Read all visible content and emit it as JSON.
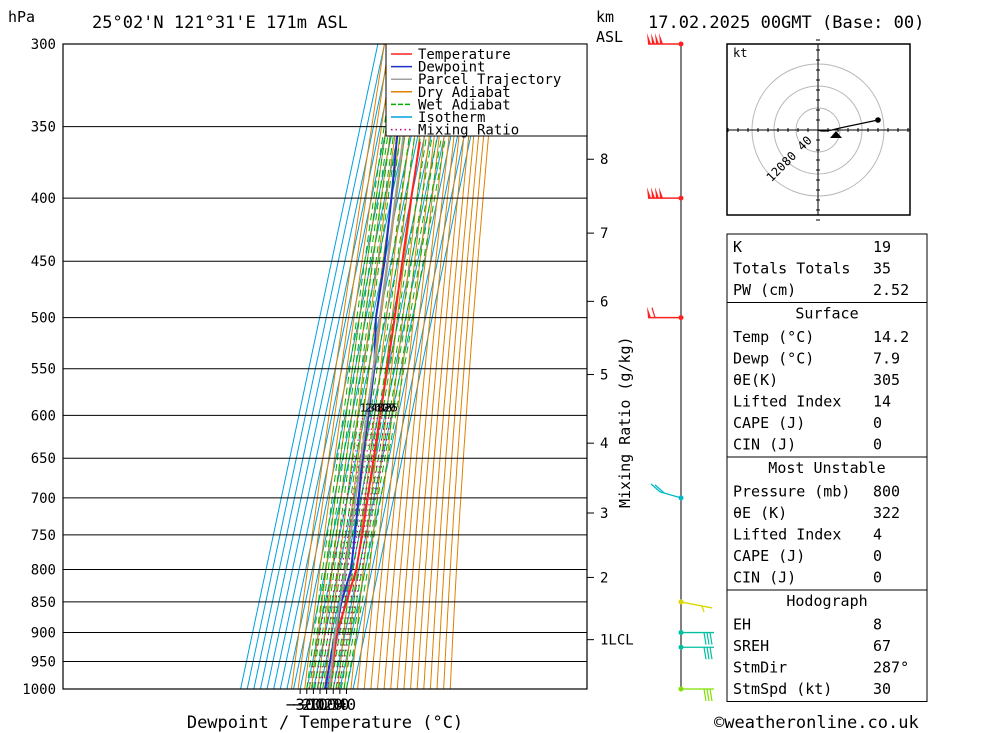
{
  "header": {
    "pressure_unit": "hPa",
    "location": "25°02'N 121°31'E 171m ASL",
    "height_unit_1": "km",
    "height_unit_2": "ASL",
    "date": "17.02.2025 00GMT (Base: 00)"
  },
  "legend": [
    {
      "label": "Temperature",
      "color": "#ff2020"
    },
    {
      "label": "Dewpoint",
      "color": "#1e32c8"
    },
    {
      "label": "Parcel Trajectory",
      "color": "#a0a0a0"
    },
    {
      "label": "Dry Adiabat",
      "color": "#e08000"
    },
    {
      "label": "Wet Adiabat",
      "color": "#00b000"
    },
    {
      "label": "Isotherm",
      "color": "#00a0e0"
    },
    {
      "label": "Mixing Ratio",
      "color": "#c00080"
    }
  ],
  "chart_data": {
    "type": "line",
    "subtype": "skew-t log-p",
    "xlabel": "Dewpoint / Temperature (°C)",
    "ylabel_left": "hPa",
    "ylabel_right": "Mixing Ratio (g/kg)",
    "x_ticks": [
      -30,
      -20,
      -10,
      0,
      10,
      20,
      30,
      40
    ],
    "pressure_levels": [
      300,
      350,
      400,
      450,
      500,
      550,
      600,
      650,
      700,
      750,
      800,
      850,
      900,
      950,
      1000
    ],
    "height_ticks_km": [
      {
        "label": "8",
        "p": 372
      },
      {
        "label": "7",
        "p": 427
      },
      {
        "label": "6",
        "p": 485
      },
      {
        "label": "5",
        "p": 556
      },
      {
        "label": "4",
        "p": 632
      },
      {
        "label": "3",
        "p": 720
      },
      {
        "label": "2",
        "p": 812
      },
      {
        "label": "1LCL",
        "p": 912
      }
    ],
    "mixing_ratio_labels": [
      "1",
      "2",
      "3",
      "4",
      "6",
      "8",
      "10",
      "15",
      "20",
      "25"
    ],
    "mixing_ratio_values": [
      1,
      2,
      3,
      4,
      6,
      8,
      10,
      15,
      20,
      25
    ],
    "series": [
      {
        "name": "Temperature",
        "color": "#ff2020",
        "points": [
          [
            1000,
            14.2
          ],
          [
            950,
            10.5
          ],
          [
            900,
            7.5
          ],
          [
            850,
            12
          ],
          [
            800,
            16.3
          ],
          [
            750,
            14.2
          ],
          [
            700,
            10.5
          ],
          [
            650,
            7
          ],
          [
            600,
            3
          ],
          [
            550,
            -1.5
          ],
          [
            500,
            -6.5
          ],
          [
            450,
            -13
          ],
          [
            400,
            -20
          ],
          [
            360,
            -25
          ]
        ]
      },
      {
        "name": "Dewpoint",
        "color": "#1e32c8",
        "points": [
          [
            1000,
            7.9
          ],
          [
            950,
            6.5
          ],
          [
            900,
            5
          ],
          [
            850,
            4.5
          ],
          [
            800,
            8.5
          ],
          [
            750,
            3
          ],
          [
            700,
            -3
          ],
          [
            650,
            -10
          ],
          [
            600,
            -15
          ],
          [
            550,
            -21
          ],
          [
            500,
            -35
          ],
          [
            450,
            -40
          ],
          [
            400,
            -50
          ],
          [
            350,
            -63
          ],
          [
            300,
            -68
          ]
        ]
      },
      {
        "name": "Parcel Trajectory",
        "color": "#a0a0a0",
        "points": [
          [
            1000,
            14.2
          ],
          [
            950,
            9.5
          ],
          [
            912,
            5.8
          ],
          [
            850,
            2.5
          ],
          [
            800,
            0.2
          ],
          [
            750,
            -3.5
          ],
          [
            700,
            -7.5
          ],
          [
            650,
            -12
          ],
          [
            600,
            -17
          ],
          [
            550,
            -22.5
          ],
          [
            500,
            -29
          ],
          [
            450,
            -35.5
          ],
          [
            400,
            -44
          ],
          [
            350,
            -53
          ],
          [
            300,
            -62
          ]
        ]
      }
    ],
    "wind_barbs": [
      {
        "p": 300,
        "color": "#ff2020"
      },
      {
        "p": 400,
        "color": "#ff2020"
      },
      {
        "p": 500,
        "color": "#ff2020"
      },
      {
        "p": 700,
        "color": "#00b8c8"
      },
      {
        "p": 850,
        "color": "#d8d800"
      },
      {
        "p": 900,
        "color": "#00c0a0"
      },
      {
        "p": 925,
        "color": "#00c0a0"
      },
      {
        "p": 1000,
        "color": "#80e000"
      }
    ],
    "hodograph": {
      "unit": "kt",
      "ring_labels": [
        "40",
        "80",
        "120"
      ],
      "points": [
        [
          0,
          0
        ],
        [
          -3,
          1
        ],
        [
          -8,
          1
        ],
        [
          -14,
          0
        ],
        [
          -22,
          -2
        ],
        [
          -60,
          -10
        ]
      ]
    }
  },
  "indices": [
    {
      "label": "K",
      "value": "19"
    },
    {
      "label": "Totals Totals",
      "value": "35"
    },
    {
      "label": "PW (cm)",
      "value": "2.52"
    }
  ],
  "surface": {
    "title": "Surface",
    "rows": [
      {
        "label": "Temp (°C)",
        "value": "14.2"
      },
      {
        "label": "Dewp (°C)",
        "value": "7.9"
      },
      {
        "label": "θE(K)",
        "value": "305"
      },
      {
        "label": "Lifted Index",
        "value": "14"
      },
      {
        "label": "CAPE (J)",
        "value": "0"
      },
      {
        "label": "CIN (J)",
        "value": "0"
      }
    ]
  },
  "most_unstable": {
    "title": "Most Unstable",
    "rows": [
      {
        "label": "Pressure (mb)",
        "value": "800"
      },
      {
        "label": "θE (K)",
        "value": "322"
      },
      {
        "label": "Lifted Index",
        "value": "4"
      },
      {
        "label": "CAPE (J)",
        "value": "0"
      },
      {
        "label": "CIN (J)",
        "value": "0"
      }
    ]
  },
  "hodograph_table": {
    "title": "Hodograph",
    "rows": [
      {
        "label": "EH",
        "value": "8"
      },
      {
        "label": "SREH",
        "value": "67"
      },
      {
        "label": "StmDir",
        "value": "287°"
      },
      {
        "label": "StmSpd (kt)",
        "value": "30"
      }
    ]
  },
  "copyright": "©weatheronline.co.uk"
}
